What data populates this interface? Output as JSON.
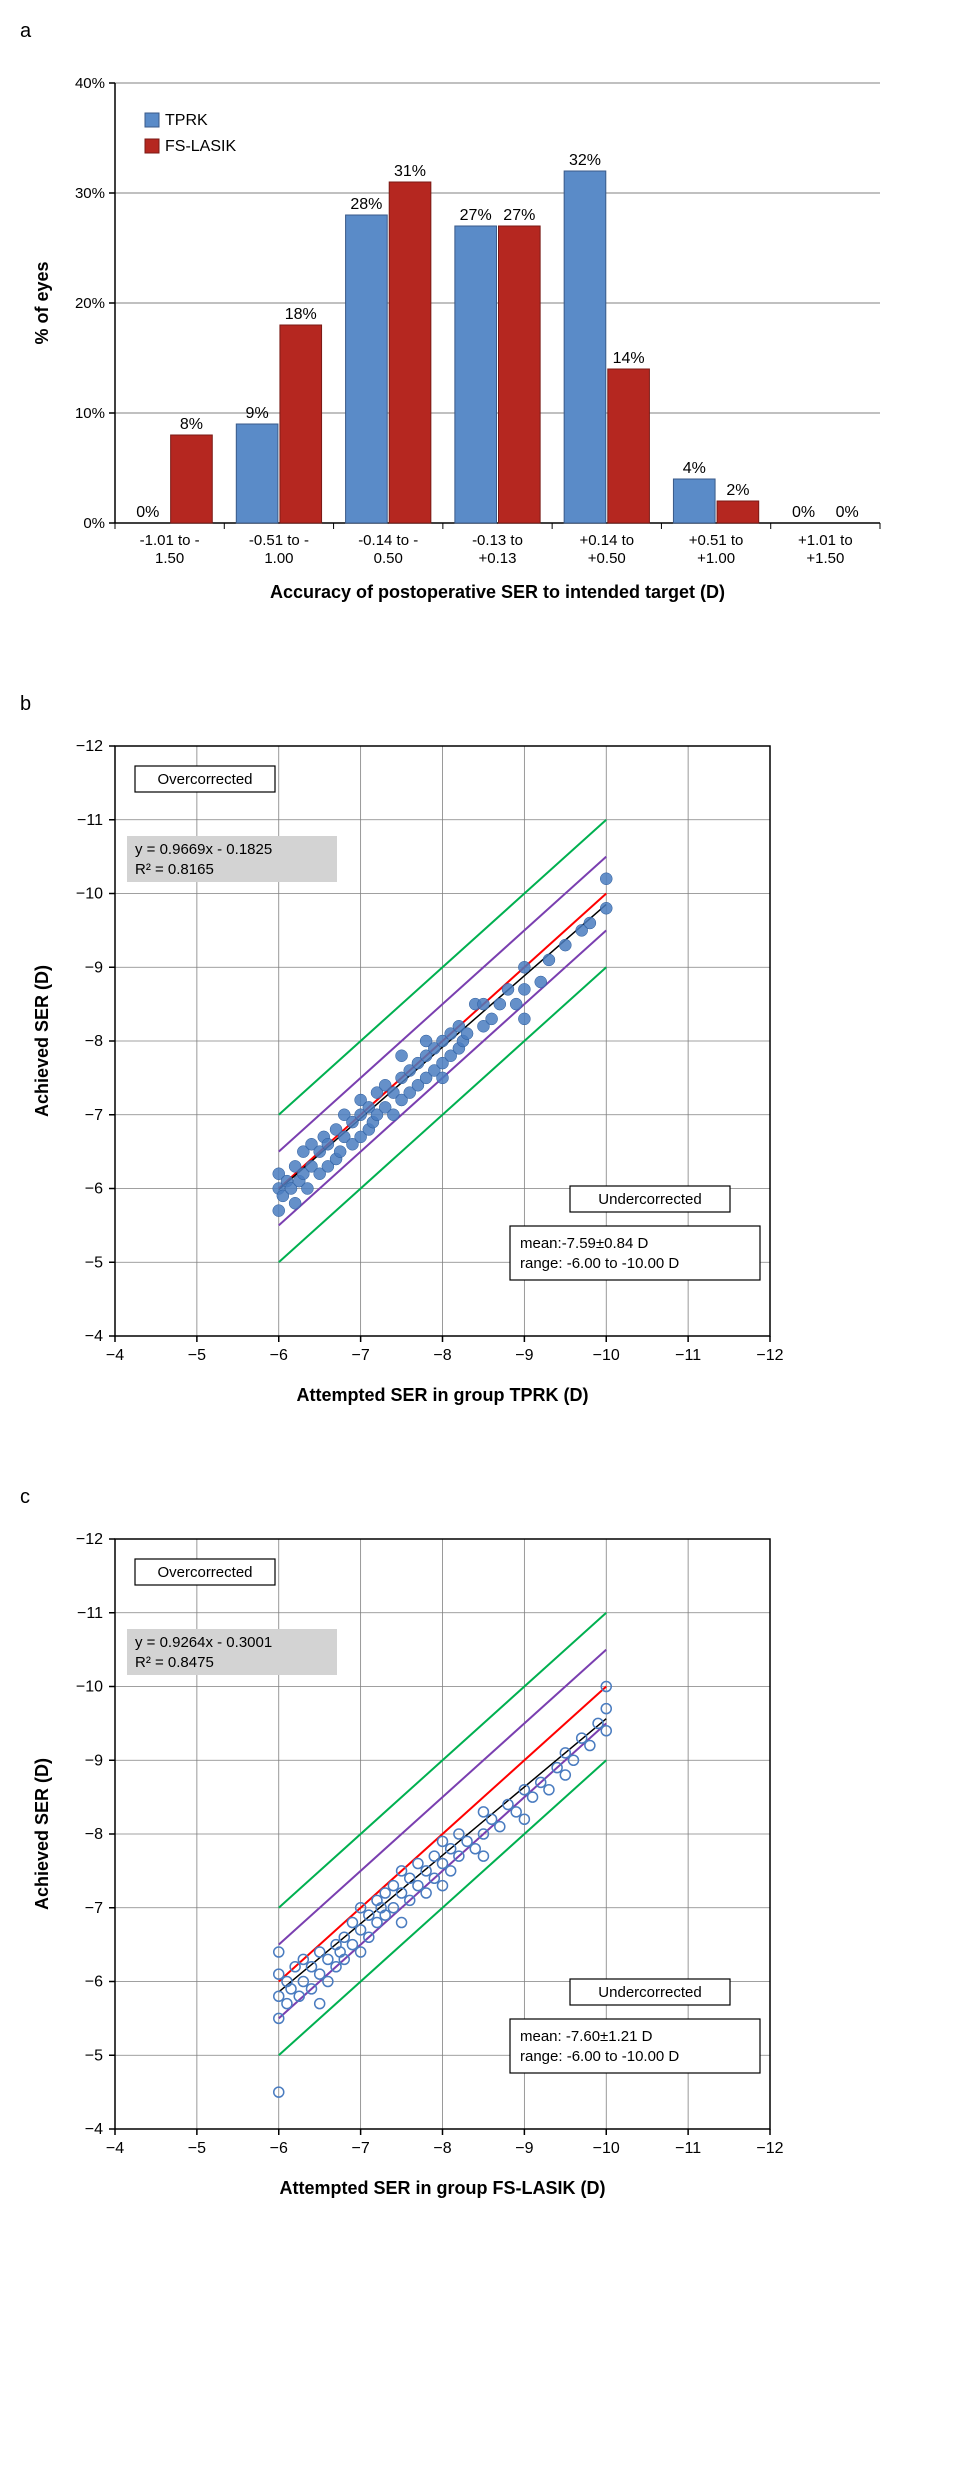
{
  "panelA": {
    "label": "a",
    "type": "bar",
    "xlabel": "Accuracy of postoperative SER to intended target (D)",
    "ylabel": "% of eyes",
    "categories": [
      "-1.01 to -1.50",
      "-0.51 to -1.00",
      "-0.14 to -0.50",
      "-0.13 to +0.13",
      "+0.14 to +0.50",
      "+0.51 to +1.00",
      "+1.01 to +1.50"
    ],
    "series": [
      {
        "name": "TPRK",
        "color": "#5a8bc8",
        "border": "#3a5a88",
        "values": [
          0,
          9,
          28,
          27,
          32,
          4,
          0
        ]
      },
      {
        "name": "FS-LASIK",
        "color": "#b52720",
        "border": "#7a1a15",
        "values": [
          8,
          18,
          31,
          27,
          14,
          2,
          0
        ]
      }
    ],
    "ylim": [
      0,
      40
    ],
    "ytick_step": 10,
    "grid_color": "#808080",
    "background": "#ffffff",
    "bar_width": 0.4,
    "label_fontsize": 18,
    "tick_fontsize": 15,
    "legend_fontsize": 16
  },
  "panelB": {
    "label": "b",
    "type": "scatter",
    "xlabel": "Attempted SER in group TPRK (D)",
    "ylabel": "Achieved SER (D)",
    "xlim": [
      -4,
      -12
    ],
    "ylim": [
      -4,
      -12
    ],
    "tick_step": 1,
    "grid_color": "#808080",
    "marker_style": "filled-circle",
    "marker_color": "#4a7cc0",
    "marker_size": 6,
    "lines": [
      {
        "color": "#ff0000",
        "width": 2,
        "offset": 0
      },
      {
        "color": "#7a3fb0",
        "width": 2,
        "offset": 0.5
      },
      {
        "color": "#7a3fb0",
        "width": 2,
        "offset": -0.5
      },
      {
        "color": "#00b050",
        "width": 2,
        "offset": 1.0
      },
      {
        "color": "#00b050",
        "width": 2,
        "offset": -1.0
      }
    ],
    "regression": {
      "slope": 0.9669,
      "intercept": -0.1825,
      "r2": 0.8165,
      "color": "#000000",
      "width": 1.5,
      "x_from": -6,
      "x_to": -10
    },
    "eq_text1": "y = 0.9669x - 0.1825",
    "eq_text2": "R² = 0.8165",
    "overcorrected_label": "Overcorrected",
    "undercorrected_label": "Undercorrected",
    "stats_line1": "mean:-7.59±0.84 D",
    "stats_line2": "range: -6.00 to -10.00 D",
    "points": [
      [
        -6.0,
        -5.7
      ],
      [
        -6.0,
        -6.0
      ],
      [
        -6.0,
        -6.2
      ],
      [
        -6.05,
        -5.9
      ],
      [
        -6.1,
        -6.1
      ],
      [
        -6.15,
        -6.0
      ],
      [
        -6.2,
        -5.8
      ],
      [
        -6.2,
        -6.3
      ],
      [
        -6.25,
        -6.1
      ],
      [
        -6.3,
        -6.2
      ],
      [
        -6.3,
        -6.5
      ],
      [
        -6.35,
        -6.0
      ],
      [
        -6.4,
        -6.3
      ],
      [
        -6.4,
        -6.6
      ],
      [
        -6.5,
        -6.2
      ],
      [
        -6.5,
        -6.5
      ],
      [
        -6.55,
        -6.7
      ],
      [
        -6.6,
        -6.3
      ],
      [
        -6.6,
        -6.6
      ],
      [
        -6.7,
        -6.4
      ],
      [
        -6.7,
        -6.8
      ],
      [
        -6.75,
        -6.5
      ],
      [
        -6.8,
        -6.7
      ],
      [
        -6.8,
        -7.0
      ],
      [
        -6.9,
        -6.6
      ],
      [
        -6.9,
        -6.9
      ],
      [
        -7.0,
        -6.7
      ],
      [
        -7.0,
        -7.0
      ],
      [
        -7.0,
        -7.2
      ],
      [
        -7.1,
        -6.8
      ],
      [
        -7.1,
        -7.1
      ],
      [
        -7.15,
        -6.9
      ],
      [
        -7.2,
        -7.0
      ],
      [
        -7.2,
        -7.3
      ],
      [
        -7.3,
        -7.1
      ],
      [
        -7.3,
        -7.4
      ],
      [
        -7.4,
        -7.0
      ],
      [
        -7.4,
        -7.3
      ],
      [
        -7.5,
        -7.2
      ],
      [
        -7.5,
        -7.5
      ],
      [
        -7.5,
        -7.8
      ],
      [
        -7.6,
        -7.3
      ],
      [
        -7.6,
        -7.6
      ],
      [
        -7.7,
        -7.4
      ],
      [
        -7.7,
        -7.7
      ],
      [
        -7.8,
        -7.5
      ],
      [
        -7.8,
        -7.8
      ],
      [
        -7.8,
        -8.0
      ],
      [
        -7.9,
        -7.6
      ],
      [
        -7.9,
        -7.9
      ],
      [
        -8.0,
        -7.7
      ],
      [
        -8.0,
        -8.0
      ],
      [
        -8.0,
        -7.5
      ],
      [
        -8.1,
        -7.8
      ],
      [
        -8.1,
        -8.1
      ],
      [
        -8.2,
        -7.9
      ],
      [
        -8.2,
        -8.2
      ],
      [
        -8.25,
        -8.0
      ],
      [
        -8.3,
        -8.1
      ],
      [
        -8.4,
        -8.5
      ],
      [
        -8.5,
        -8.2
      ],
      [
        -8.5,
        -8.5
      ],
      [
        -8.6,
        -8.3
      ],
      [
        -8.7,
        -8.5
      ],
      [
        -8.8,
        -8.7
      ],
      [
        -8.9,
        -8.5
      ],
      [
        -9.0,
        -8.7
      ],
      [
        -9.0,
        -9.0
      ],
      [
        -9.2,
        -8.8
      ],
      [
        -9.3,
        -9.1
      ],
      [
        -9.5,
        -9.3
      ],
      [
        -9.7,
        -9.5
      ],
      [
        -9.8,
        -9.6
      ],
      [
        -10.0,
        -9.8
      ],
      [
        -9.0,
        -8.3
      ],
      [
        -10.0,
        -10.2
      ]
    ]
  },
  "panelC": {
    "label": "c",
    "type": "scatter",
    "xlabel": "Attempted SER  in group FS-LASIK (D)",
    "ylabel": "Achieved SER (D)",
    "xlim": [
      -4,
      -12
    ],
    "ylim": [
      -4,
      -12
    ],
    "tick_step": 1,
    "grid_color": "#808080",
    "marker_style": "open-circle",
    "marker_color": "#4a7cc0",
    "marker_size": 5,
    "lines": [
      {
        "color": "#ff0000",
        "width": 2,
        "offset": 0
      },
      {
        "color": "#7a3fb0",
        "width": 2,
        "offset": 0.5
      },
      {
        "color": "#7a3fb0",
        "width": 2,
        "offset": -0.5
      },
      {
        "color": "#00b050",
        "width": 2,
        "offset": 1.0
      },
      {
        "color": "#00b050",
        "width": 2,
        "offset": -1.0
      }
    ],
    "regression": {
      "slope": 0.9264,
      "intercept": -0.3001,
      "r2": 0.8475,
      "color": "#000000",
      "width": 1.5,
      "x_from": -6,
      "x_to": -10
    },
    "eq_text1": "y = 0.9264x - 0.3001",
    "eq_text2": "R² = 0.8475",
    "overcorrected_label": "Overcorrected",
    "undercorrected_label": "Undercorrected",
    "stats_line1": "mean: -7.60±1.21 D",
    "stats_line2": "range: -6.00 to -10.00 D",
    "points": [
      [
        -6.0,
        -5.5
      ],
      [
        -6.0,
        -5.8
      ],
      [
        -6.0,
        -6.1
      ],
      [
        -6.0,
        -6.4
      ],
      [
        -6.0,
        -4.5
      ],
      [
        -6.1,
        -5.7
      ],
      [
        -6.1,
        -6.0
      ],
      [
        -6.15,
        -5.9
      ],
      [
        -6.2,
        -6.2
      ],
      [
        -6.25,
        -5.8
      ],
      [
        -6.3,
        -6.0
      ],
      [
        -6.3,
        -6.3
      ],
      [
        -6.4,
        -5.9
      ],
      [
        -6.4,
        -6.2
      ],
      [
        -6.5,
        -5.7
      ],
      [
        -6.5,
        -6.1
      ],
      [
        -6.5,
        -6.4
      ],
      [
        -6.6,
        -6.0
      ],
      [
        -6.6,
        -6.3
      ],
      [
        -6.7,
        -6.2
      ],
      [
        -6.7,
        -6.5
      ],
      [
        -6.75,
        -6.4
      ],
      [
        -6.8,
        -6.3
      ],
      [
        -6.8,
        -6.6
      ],
      [
        -6.9,
        -6.5
      ],
      [
        -6.9,
        -6.8
      ],
      [
        -7.0,
        -6.4
      ],
      [
        -7.0,
        -6.7
      ],
      [
        -7.0,
        -7.0
      ],
      [
        -7.1,
        -6.6
      ],
      [
        -7.1,
        -6.9
      ],
      [
        -7.2,
        -6.8
      ],
      [
        -7.2,
        -7.1
      ],
      [
        -7.25,
        -7.0
      ],
      [
        -7.3,
        -6.9
      ],
      [
        -7.3,
        -7.2
      ],
      [
        -7.4,
        -7.0
      ],
      [
        -7.4,
        -7.3
      ],
      [
        -7.5,
        -6.8
      ],
      [
        -7.5,
        -7.2
      ],
      [
        -7.5,
        -7.5
      ],
      [
        -7.6,
        -7.1
      ],
      [
        -7.6,
        -7.4
      ],
      [
        -7.7,
        -7.3
      ],
      [
        -7.7,
        -7.6
      ],
      [
        -7.8,
        -7.2
      ],
      [
        -7.8,
        -7.5
      ],
      [
        -7.9,
        -7.4
      ],
      [
        -7.9,
        -7.7
      ],
      [
        -8.0,
        -7.3
      ],
      [
        -8.0,
        -7.6
      ],
      [
        -8.0,
        -7.9
      ],
      [
        -8.1,
        -7.5
      ],
      [
        -8.1,
        -7.8
      ],
      [
        -8.2,
        -7.7
      ],
      [
        -8.2,
        -8.0
      ],
      [
        -8.3,
        -7.9
      ],
      [
        -8.4,
        -7.8
      ],
      [
        -8.5,
        -8.0
      ],
      [
        -8.5,
        -8.3
      ],
      [
        -8.6,
        -8.2
      ],
      [
        -8.7,
        -8.1
      ],
      [
        -8.8,
        -8.4
      ],
      [
        -8.9,
        -8.3
      ],
      [
        -9.0,
        -8.2
      ],
      [
        -9.0,
        -8.6
      ],
      [
        -9.1,
        -8.5
      ],
      [
        -9.2,
        -8.7
      ],
      [
        -9.3,
        -8.6
      ],
      [
        -9.4,
        -8.9
      ],
      [
        -9.5,
        -8.8
      ],
      [
        -9.5,
        -9.1
      ],
      [
        -9.6,
        -9.0
      ],
      [
        -9.7,
        -9.3
      ],
      [
        -9.8,
        -9.2
      ],
      [
        -9.9,
        -9.5
      ],
      [
        -10.0,
        -9.4
      ],
      [
        -10.0,
        -9.7
      ],
      [
        -10.0,
        -10.0
      ],
      [
        -8.5,
        -7.7
      ]
    ]
  }
}
